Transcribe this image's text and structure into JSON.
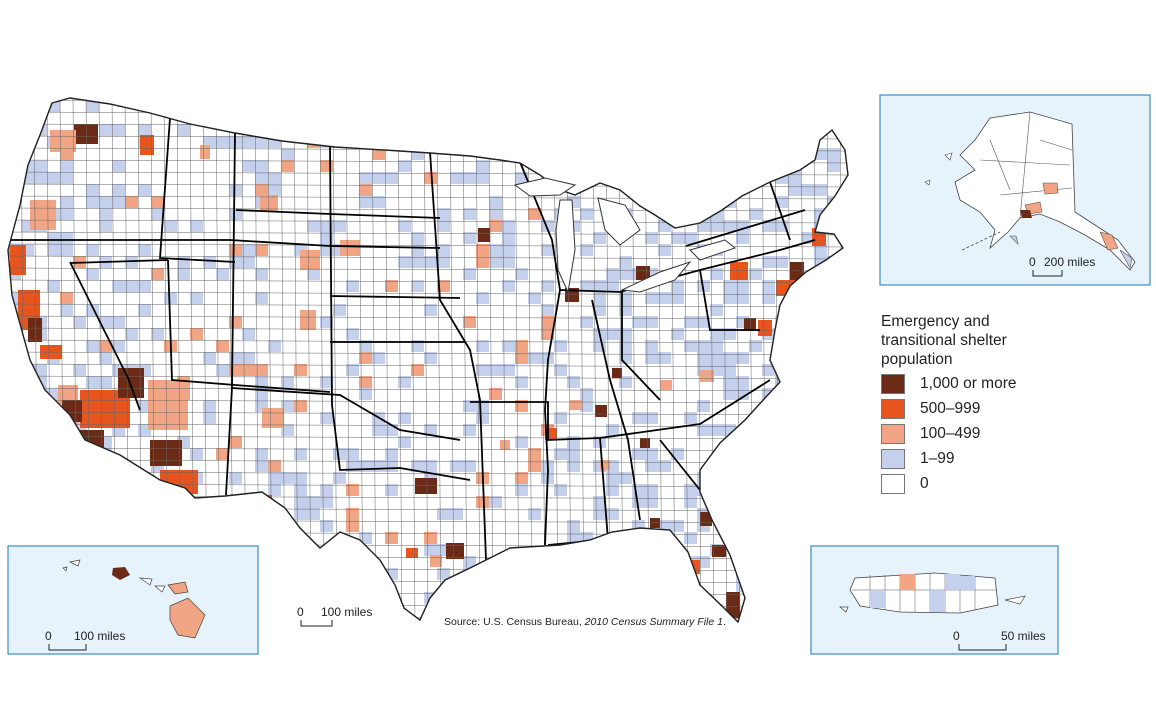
{
  "legend": {
    "title_lines": [
      "Emergency and",
      "transitional shelter",
      "population"
    ],
    "items": [
      {
        "label": "1,000 or more",
        "color": "#6b2a16"
      },
      {
        "label": "500–999",
        "color": "#e8541e"
      },
      {
        "label": "100–499",
        "color": "#f2a584"
      },
      {
        "label": "1–99",
        "color": "#c4d0ec"
      },
      {
        "label": "0",
        "color": "#ffffff"
      }
    ]
  },
  "scales": {
    "main": {
      "zero": "0",
      "label": "100 miles"
    },
    "alaska": {
      "zero": "0",
      "label": "200 miles"
    },
    "hawaii": {
      "zero": "0",
      "label": "100 miles"
    },
    "puerto_rico": {
      "zero": "0",
      "label": "50 miles"
    }
  },
  "source": {
    "prefix": "Source: U.S. Census Bureau, ",
    "title": "2010 Census Summary File 1",
    "suffix": "."
  },
  "colors": {
    "inset_bg": "#e6f3fb",
    "inset_border": "#3d8ec4",
    "county_line": "#555555",
    "state_line": "#000000"
  }
}
